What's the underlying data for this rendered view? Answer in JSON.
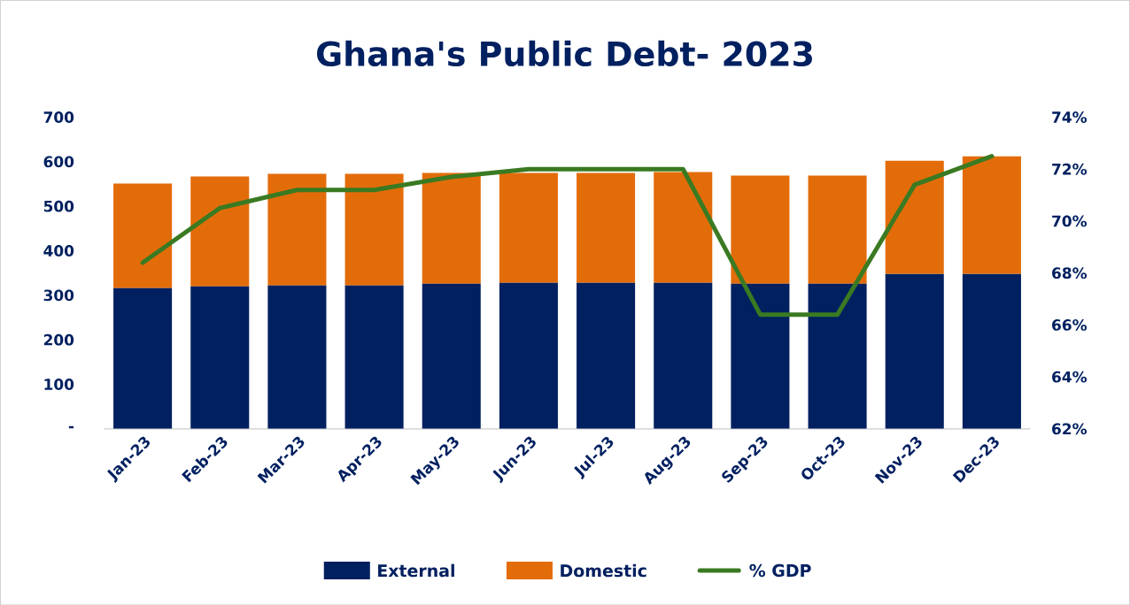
{
  "chart_data": {
    "type": "bar",
    "title": "Ghana's Public Debt- 2023",
    "stacked": true,
    "categories": [
      "Jan-23",
      "Feb-23",
      "Mar-23",
      "Apr-23",
      "May-23",
      "Jun-23",
      "Jul-23",
      "Aug-23",
      "Sep-23",
      "Oct-23",
      "Nov-23",
      "Dec-23"
    ],
    "series": [
      {
        "name": "External",
        "color": "#002060",
        "values": [
          316,
          320,
          322,
          322,
          326,
          328,
          328,
          328,
          326,
          326,
          348,
          348
        ]
      },
      {
        "name": "Domestic",
        "color": "#e36c0a",
        "values": [
          235,
          247,
          251,
          251,
          249,
          247,
          247,
          249,
          243,
          243,
          254,
          264
        ]
      },
      {
        "name": "% GDP",
        "type": "line",
        "axis": "y2",
        "color": "#3a7a22",
        "values": [
          68.4,
          70.5,
          71.2,
          71.2,
          71.7,
          72.0,
          72.0,
          72.0,
          66.4,
          66.4,
          71.4,
          72.5
        ]
      }
    ],
    "ylim": [
      0,
      700
    ],
    "yticks": [
      {
        "value": 0,
        "label": "-"
      },
      100,
      200,
      300,
      400,
      500,
      600,
      700
    ],
    "y2lim": [
      62,
      74
    ],
    "y2ticks": [
      {
        "value": 62,
        "label": "62%"
      },
      {
        "value": 64,
        "label": "64%"
      },
      {
        "value": 66,
        "label": "66%"
      },
      {
        "value": 68,
        "label": "68%"
      },
      {
        "value": 70,
        "label": "70%"
      },
      {
        "value": 72,
        "label": "72%"
      },
      {
        "value": 74,
        "label": "74%"
      }
    ],
    "legend": "bottom",
    "grid": false,
    "marker": "none"
  }
}
